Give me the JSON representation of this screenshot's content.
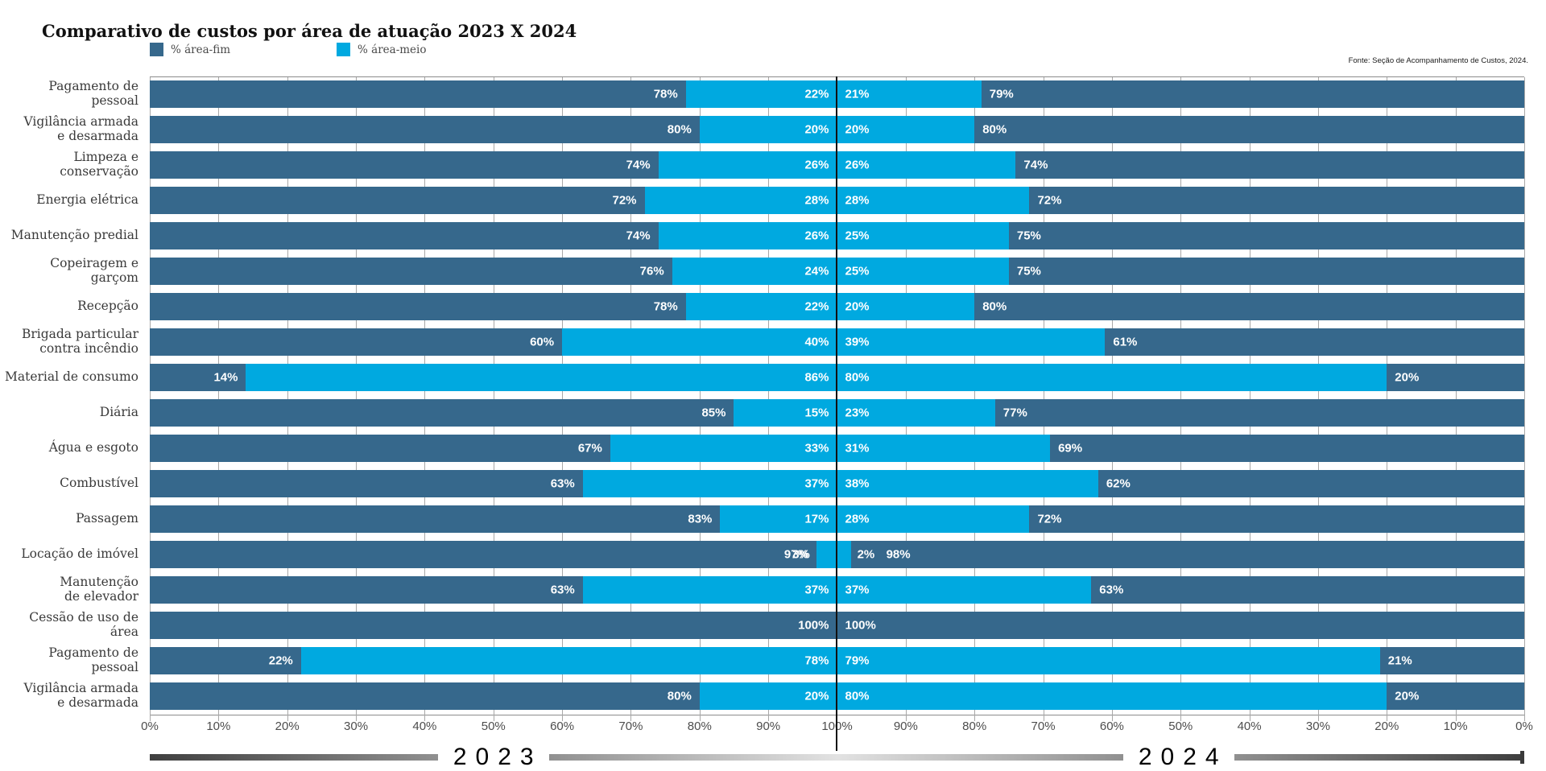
{
  "header": {
    "title": "Comparativo de custos por área de atuação 2023 X 2024",
    "source": "Fonte: Seção de Acompanhamento de Custos, 2024."
  },
  "legend": [
    {
      "label": "% área-fim",
      "color": "#36688c"
    },
    {
      "label": "% área-meio",
      "color": "#00a9e0"
    }
  ],
  "footer": {
    "left_year": "2023",
    "right_year": "2024"
  },
  "chart_data": {
    "type": "bar",
    "variant": "diverging-stacked-butterfly",
    "title": "Comparativo de custos por área de atuação 2023 X 2024",
    "series": [
      "% área-fim",
      "% área-meio"
    ],
    "sides": [
      "2023",
      "2024"
    ],
    "colors": {
      "area_fim": "#36688c",
      "area_meio": "#00a9e0",
      "gridline": "#a8a8a8",
      "center_line": "#111111"
    },
    "axis": {
      "unit": "%",
      "tick_step": 10,
      "ticks": [
        "0%",
        "10%",
        "20%",
        "30%",
        "40%",
        "50%",
        "60%",
        "70%",
        "80%",
        "90%",
        "100%",
        "90%",
        "80%",
        "70%",
        "60%",
        "50%",
        "40%",
        "30%",
        "20%",
        "10%",
        "0%"
      ]
    },
    "rows": [
      {
        "category": "Pagamento de pessoal",
        "fim_2023": 78,
        "meio_2023": 22,
        "meio_2024": 21,
        "fim_2024": 79
      },
      {
        "category": "Vigilância armada\ne desarmada",
        "fim_2023": 80,
        "meio_2023": 20,
        "meio_2024": 20,
        "fim_2024": 80
      },
      {
        "category": "Limpeza e\nconservação",
        "fim_2023": 74,
        "meio_2023": 26,
        "meio_2024": 26,
        "fim_2024": 74
      },
      {
        "category": "Energia elétrica",
        "fim_2023": 72,
        "meio_2023": 28,
        "meio_2024": 28,
        "fim_2024": 72
      },
      {
        "category": "Manutenção predial",
        "fim_2023": 74,
        "meio_2023": 26,
        "meio_2024": 25,
        "fim_2024": 75
      },
      {
        "category": "Copeiragem e garçom",
        "fim_2023": 76,
        "meio_2023": 24,
        "meio_2024": 25,
        "fim_2024": 75
      },
      {
        "category": "Recepção",
        "fim_2023": 78,
        "meio_2023": 22,
        "meio_2024": 20,
        "fim_2024": 80
      },
      {
        "category": "Brigada particular\ncontra incêndio",
        "fim_2023": 60,
        "meio_2023": 40,
        "meio_2024": 39,
        "fim_2024": 61
      },
      {
        "category": "Material de consumo",
        "fim_2023": 14,
        "meio_2023": 86,
        "meio_2024": 80,
        "fim_2024": 20
      },
      {
        "category": "Diária",
        "fim_2023": 85,
        "meio_2023": 15,
        "meio_2024": 23,
        "fim_2024": 77
      },
      {
        "category": "Água e esgoto",
        "fim_2023": 67,
        "meio_2023": 33,
        "meio_2024": 31,
        "fim_2024": 69
      },
      {
        "category": "Combustível",
        "fim_2023": 63,
        "meio_2023": 37,
        "meio_2024": 38,
        "fim_2024": 62
      },
      {
        "category": "Passagem",
        "fim_2023": 83,
        "meio_2023": 17,
        "meio_2024": 28,
        "fim_2024": 72
      },
      {
        "category": "Locação de imóvel",
        "fim_2023": 97,
        "meio_2023": 3,
        "meio_2024": 2,
        "fim_2024": 98
      },
      {
        "category": "Manutenção\nde elevador",
        "fim_2023": 63,
        "meio_2023": 37,
        "meio_2024": 37,
        "fim_2024": 63
      },
      {
        "category": "Cessão de uso de área",
        "fim_2023": 100,
        "meio_2023": 0,
        "meio_2024": 0,
        "fim_2024": 100
      },
      {
        "category": "Pagamento de pessoal",
        "fim_2023": 22,
        "meio_2023": 78,
        "meio_2024": 79,
        "fim_2024": 21
      },
      {
        "category": "Vigilância armada\ne desarmada",
        "fim_2023": 80,
        "meio_2023": 20,
        "meio_2024": 80,
        "fim_2024": 20
      }
    ]
  }
}
